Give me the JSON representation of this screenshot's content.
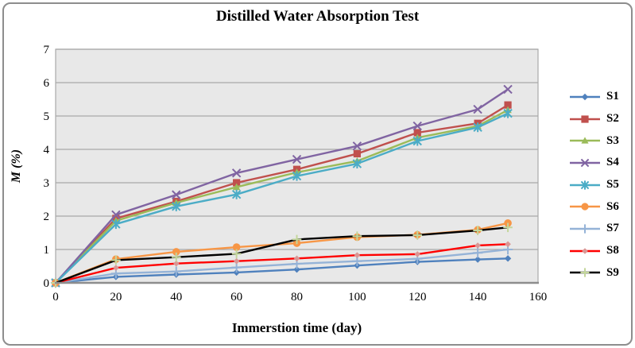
{
  "chart_data": {
    "type": "line",
    "title": "Distilled Water Absorption Test",
    "xlabel": "Immerstion time (day)",
    "ylabel": "M (%)",
    "x": [
      0,
      20,
      40,
      60,
      80,
      100,
      120,
      140,
      150
    ],
    "xlim": [
      0,
      160
    ],
    "ylim": [
      0,
      7
    ],
    "x_ticks": [
      0,
      20,
      40,
      60,
      80,
      100,
      120,
      140,
      160
    ],
    "y_ticks": [
      0,
      1,
      2,
      3,
      4,
      5,
      6,
      7
    ],
    "grid": "horizontal",
    "legend_position": "right",
    "plot_bg": "#E8E8E8",
    "grid_color": "#A9A9A9",
    "axis_color": "#8D8D8D",
    "series": [
      {
        "name": "S1",
        "color": "#4F81BD",
        "marker": "diamond",
        "marker_color": "#4F81BD",
        "marker_size": 4.2,
        "values": [
          0,
          0.18,
          0.25,
          0.31,
          0.4,
          0.52,
          0.63,
          0.7,
          0.73
        ]
      },
      {
        "name": "S2",
        "color": "#C0504D",
        "marker": "square",
        "marker_color": "#C0504D",
        "marker_size": 4.6,
        "values": [
          0,
          1.93,
          2.44,
          3.0,
          3.4,
          3.87,
          4.5,
          4.78,
          5.33
        ]
      },
      {
        "name": "S3",
        "color": "#9BBB59",
        "marker": "triangle",
        "marker_color": "#9BBB59",
        "marker_size": 4.8,
        "values": [
          0,
          1.86,
          2.4,
          2.87,
          3.31,
          3.65,
          4.35,
          4.7,
          5.18
        ]
      },
      {
        "name": "S4",
        "color": "#8064A2",
        "marker": "x",
        "marker_color": "#8064A2",
        "marker_size": 5.0,
        "values": [
          0,
          2.04,
          2.64,
          3.29,
          3.7,
          4.1,
          4.7,
          5.2,
          5.8
        ]
      },
      {
        "name": "S5",
        "color": "#4BACC6",
        "marker": "asterisk",
        "marker_color": "#4BACC6",
        "marker_size": 5.0,
        "values": [
          0,
          1.76,
          2.29,
          2.65,
          3.2,
          3.57,
          4.25,
          4.66,
          5.08
        ]
      },
      {
        "name": "S6",
        "color": "#F79646",
        "marker": "circle",
        "marker_color": "#F79646",
        "marker_size": 4.8,
        "values": [
          0,
          0.71,
          0.93,
          1.07,
          1.19,
          1.37,
          1.44,
          1.59,
          1.79
        ]
      },
      {
        "name": "S7",
        "color": "#95B3D7",
        "marker": "plus",
        "marker_color": "#95B3D7",
        "marker_size": 5.2,
        "values": [
          0,
          0.28,
          0.34,
          0.46,
          0.57,
          0.65,
          0.72,
          0.9,
          1.0
        ]
      },
      {
        "name": "S8",
        "color": "#FF0000",
        "marker": "diamond",
        "marker_color": "#D99694",
        "marker_size": 3.8,
        "values": [
          0,
          0.45,
          0.58,
          0.65,
          0.73,
          0.83,
          0.86,
          1.12,
          1.16
        ]
      },
      {
        "name": "S9",
        "color": "#000000",
        "marker": "plus",
        "marker_color": "#C3D69B",
        "marker_size": 4.8,
        "values": [
          0,
          0.68,
          0.77,
          0.87,
          1.3,
          1.4,
          1.43,
          1.57,
          1.66
        ]
      }
    ]
  }
}
